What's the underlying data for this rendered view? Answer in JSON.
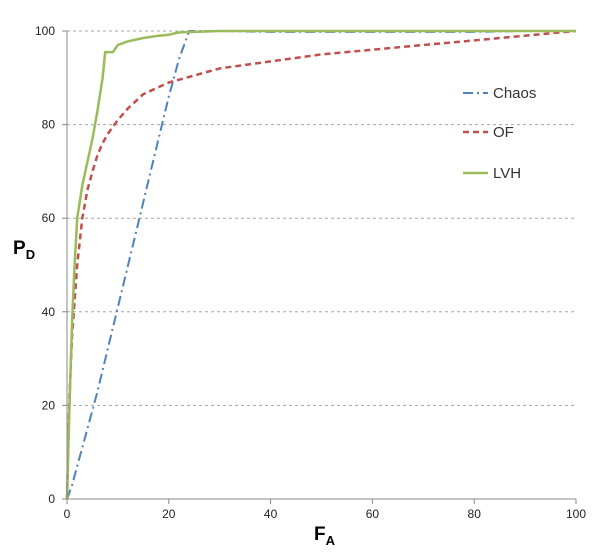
{
  "chart_data": {
    "type": "line",
    "xlabel": "F",
    "xlabel_sub": "A",
    "ylabel": "P",
    "ylabel_sub": "D",
    "xlim": [
      0,
      100
    ],
    "ylim": [
      0,
      100
    ],
    "xticks": [
      0,
      20,
      40,
      60,
      80,
      100
    ],
    "yticks": [
      0,
      20,
      40,
      60,
      80,
      100
    ],
    "grid": "horizontal dashed",
    "legend_position": "right",
    "series": [
      {
        "name": "Chaos",
        "color": "#4f81bd",
        "dash": "dashdot",
        "x": [
          0,
          1,
          2,
          4,
          6,
          8,
          10,
          12,
          14,
          16,
          18,
          20,
          22,
          24,
          30,
          40,
          50,
          60,
          70,
          80,
          90,
          100
        ],
        "y": [
          0,
          3,
          7,
          15,
          23,
          32,
          41,
          50,
          59,
          68,
          77,
          86,
          94,
          100,
          100,
          99.8,
          99.8,
          99.8,
          99.8,
          99.8,
          100,
          100
        ]
      },
      {
        "name": "OF",
        "color": "#c0504d",
        "dash": "dashed",
        "x": [
          0,
          0.5,
          1,
          2,
          3,
          4,
          5,
          6,
          7,
          8,
          10,
          12,
          15,
          20,
          25,
          30,
          40,
          50,
          60,
          70,
          80,
          90,
          95,
          100
        ],
        "y": [
          0,
          22,
          35,
          50,
          60,
          66,
          70,
          73.5,
          76,
          78,
          81,
          83.5,
          86.5,
          89,
          90.5,
          92,
          93.5,
          95,
          96,
          97,
          98,
          99,
          99.5,
          100
        ]
      },
      {
        "name": "LVH",
        "color": "#9bbb59",
        "dash": "solid",
        "x": [
          0,
          0.5,
          1,
          1.5,
          2,
          3,
          4,
          5,
          6,
          7,
          7.5,
          8,
          9,
          10,
          12,
          15,
          18,
          20,
          22,
          25,
          30,
          40,
          60,
          80,
          100
        ],
        "y": [
          0,
          20,
          38,
          50,
          60,
          67,
          72,
          77,
          83,
          90,
          95.5,
          95.5,
          95.5,
          97,
          97.8,
          98.5,
          99,
          99.2,
          99.7,
          99.8,
          100,
          100,
          100,
          100,
          100
        ]
      }
    ]
  }
}
